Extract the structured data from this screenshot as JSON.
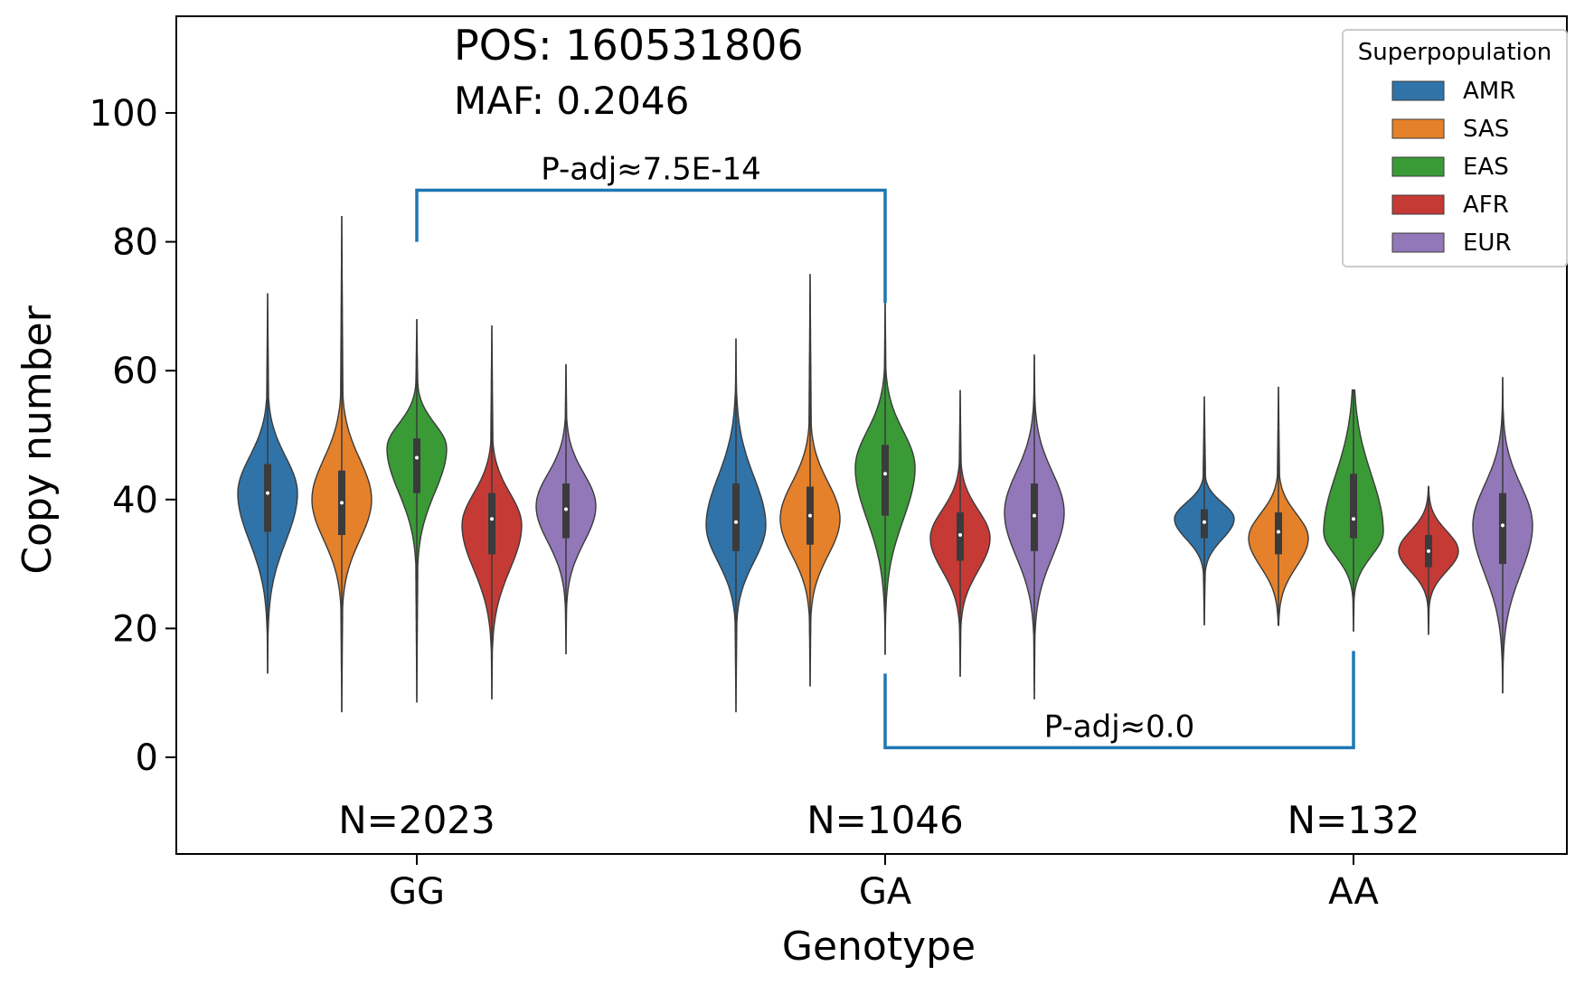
{
  "chart_data": {
    "type": "violin",
    "xlabel": "Genotype",
    "ylabel": "Copy number",
    "ylim": [
      -15,
      115
    ],
    "yticks": [
      0,
      20,
      40,
      60,
      80,
      100
    ],
    "categories": [
      "GG",
      "GA",
      "AA"
    ],
    "annotations": {
      "pos": "POS: 160531806",
      "maf": "MAF: 0.2046"
    },
    "counts": [
      {
        "category": "GG",
        "label": "N=2023"
      },
      {
        "category": "GA",
        "label": "N=1046"
      },
      {
        "category": "AA",
        "label": "N=132"
      }
    ],
    "legend": {
      "title": "Superpopulation",
      "placement": "top-right",
      "entries": [
        {
          "name": "AMR",
          "color": "#2f73a8"
        },
        {
          "name": "SAS",
          "color": "#e5812a"
        },
        {
          "name": "EAS",
          "color": "#3a9a36"
        },
        {
          "name": "AFR",
          "color": "#c63a35"
        },
        {
          "name": "EUR",
          "color": "#9278b8"
        }
      ]
    },
    "series": [
      {
        "name": "AMR",
        "values": [
          {
            "category": "GG",
            "min": 13,
            "max": 72,
            "q1": 35,
            "median": 41,
            "q3": 45.5,
            "mode": 41
          },
          {
            "category": "GA",
            "min": 7,
            "max": 65,
            "q1": 32,
            "median": 36.5,
            "q3": 42.5,
            "mode": 36
          },
          {
            "category": "AA",
            "min": 20.5,
            "max": 56,
            "q1": 34,
            "median": 36.5,
            "q3": 38.5,
            "mode": 37
          }
        ]
      },
      {
        "name": "SAS",
        "values": [
          {
            "category": "GG",
            "min": 7,
            "max": 84,
            "q1": 34.5,
            "median": 39.5,
            "q3": 44.5,
            "mode": 40
          },
          {
            "category": "GA",
            "min": 11,
            "max": 75,
            "q1": 33,
            "median": 37.5,
            "q3": 42,
            "mode": 37
          },
          {
            "category": "AA",
            "min": 20.5,
            "max": 57.5,
            "q1": 31.5,
            "median": 35,
            "q3": 38,
            "mode": 34
          }
        ]
      },
      {
        "name": "EAS",
        "values": [
          {
            "category": "GG",
            "min": 8.5,
            "max": 68,
            "q1": 41,
            "median": 46.5,
            "q3": 49.5,
            "mode": 48
          },
          {
            "category": "GA",
            "min": 16,
            "max": 70.5,
            "q1": 37.5,
            "median": 44,
            "q3": 48.5,
            "mode": 45
          },
          {
            "category": "AA",
            "min": 19.5,
            "max": 57,
            "q1": 34,
            "median": 37,
            "q3": 44,
            "mode": 35
          }
        ]
      },
      {
        "name": "AFR",
        "values": [
          {
            "category": "GG",
            "min": 9,
            "max": 67,
            "q1": 31.5,
            "median": 37,
            "q3": 41,
            "mode": 36
          },
          {
            "category": "GA",
            "min": 12.5,
            "max": 57,
            "q1": 30.5,
            "median": 34.5,
            "q3": 38,
            "mode": 34
          },
          {
            "category": "AA",
            "min": 19,
            "max": 42,
            "q1": 29.5,
            "median": 32,
            "q3": 34.5,
            "mode": 32
          }
        ]
      },
      {
        "name": "EUR",
        "values": [
          {
            "category": "GG",
            "min": 16,
            "max": 61,
            "q1": 34,
            "median": 38.5,
            "q3": 42.5,
            "mode": 39
          },
          {
            "category": "GA",
            "min": 9,
            "max": 62.5,
            "q1": 32,
            "median": 37.5,
            "q3": 42.5,
            "mode": 38
          },
          {
            "category": "AA",
            "min": 10,
            "max": 59,
            "q1": 30,
            "median": 36,
            "q3": 41,
            "mode": 36
          }
        ]
      }
    ],
    "significance": [
      {
        "from": "GG",
        "to": "GA",
        "label": "P-adj≈7.5E-14",
        "side": "top",
        "y": 88,
        "left_end": 80,
        "right_end": 70.5
      },
      {
        "from": "GA",
        "to": "AA",
        "label": "P-adj≈0.0",
        "side": "bottom",
        "y": 1.5,
        "left_end": 13,
        "right_end": 16.5
      },
      {
        "bracket_color": "#1f77b4"
      }
    ]
  }
}
